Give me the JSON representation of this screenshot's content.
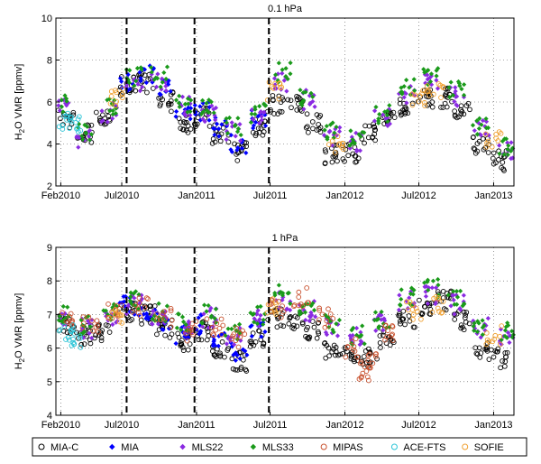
{
  "chart_data": [
    {
      "type": "scatter",
      "title": "0.1 hPa",
      "ylabel_main": "H",
      "ylabel_sub": "2",
      "ylabel_rest": "O VMR [ppmv]",
      "ylim": [
        2,
        10
      ],
      "yticks": [
        "2",
        "4",
        "6",
        "8",
        "10"
      ],
      "xlim": [
        "2010-01-20",
        "2013-02-20"
      ],
      "xticks": [
        {
          "date": "2010-02-01",
          "label": "Feb2010"
        },
        {
          "date": "2010-07-01",
          "label": "Jul2010"
        },
        {
          "date": "2011-01-01",
          "label": "Jan2011"
        },
        {
          "date": "2011-07-01",
          "label": "Jul2011"
        },
        {
          "date": "2012-01-01",
          "label": "Jan2012"
        },
        {
          "date": "2012-07-01",
          "label": "Jul2012"
        },
        {
          "date": "2013-01-01",
          "label": "Jan2013"
        }
      ],
      "grid": "dotted",
      "vlines": [
        "2010-07-13",
        "2010-12-27",
        "2011-06-28"
      ],
      "series": [
        {
          "name": "MIA-C",
          "values": [
            [
              "2010-02-15",
              5.2
            ],
            [
              "2010-04-01",
              4.5
            ],
            [
              "2010-05-15",
              5.2
            ],
            [
              "2010-07-15",
              6.8
            ],
            [
              "2010-09-01",
              6.9
            ],
            [
              "2010-10-15",
              6.0
            ],
            [
              "2010-12-01",
              5.0
            ],
            [
              "2011-01-15",
              5.3
            ],
            [
              "2011-03-01",
              4.5
            ],
            [
              "2011-04-15",
              3.6
            ],
            [
              "2011-06-01",
              4.8
            ],
            [
              "2011-07-15",
              5.9
            ],
            [
              "2011-09-01",
              6.0
            ],
            [
              "2011-10-15",
              5.0
            ],
            [
              "2011-12-01",
              3.5
            ],
            [
              "2012-01-15",
              3.6
            ],
            [
              "2012-03-01",
              4.5
            ],
            [
              "2012-04-15",
              5.2
            ],
            [
              "2012-06-01",
              5.8
            ],
            [
              "2012-07-15",
              6.2
            ],
            [
              "2012-09-01",
              6.2
            ],
            [
              "2012-10-15",
              5.5
            ],
            [
              "2012-12-01",
              4.0
            ],
            [
              "2013-01-15",
              3.2
            ]
          ]
        },
        {
          "name": "MIA",
          "values": [
            [
              "2010-07-15",
              7.0
            ],
            [
              "2010-09-01",
              7.4
            ],
            [
              "2010-10-15",
              6.6
            ],
            [
              "2010-12-01",
              5.5
            ],
            [
              "2011-01-15",
              5.6
            ],
            [
              "2011-03-01",
              4.8
            ],
            [
              "2011-04-15",
              4.0
            ],
            [
              "2011-06-01",
              5.2
            ]
          ]
        },
        {
          "name": "MLS22",
          "values": [
            [
              "2010-02-01",
              5.8
            ],
            [
              "2010-04-01",
              4.3
            ],
            [
              "2010-06-01",
              5.5
            ],
            [
              "2010-08-01",
              7.0
            ],
            [
              "2010-10-01",
              7.0
            ],
            [
              "2010-12-01",
              5.8
            ],
            [
              "2011-02-01",
              5.5
            ],
            [
              "2011-04-01",
              4.6
            ],
            [
              "2011-06-01",
              5.3
            ],
            [
              "2011-08-01",
              6.9
            ],
            [
              "2011-10-01",
              6.1
            ],
            [
              "2011-12-01",
              4.4
            ],
            [
              "2012-02-01",
              4.1
            ],
            [
              "2012-04-01",
              5.2
            ],
            [
              "2012-06-01",
              6.4
            ],
            [
              "2012-08-01",
              7.0
            ],
            [
              "2012-10-01",
              6.3
            ],
            [
              "2012-12-01",
              4.7
            ],
            [
              "2013-02-01",
              3.6
            ]
          ]
        },
        {
          "name": "MLS33",
          "values": [
            [
              "2010-02-01",
              6.0
            ],
            [
              "2010-04-01",
              4.5
            ],
            [
              "2010-06-01",
              5.8
            ],
            [
              "2010-08-01",
              7.2
            ],
            [
              "2010-10-01",
              7.2
            ],
            [
              "2010-12-01",
              6.0
            ],
            [
              "2011-02-01",
              5.7
            ],
            [
              "2011-04-01",
              4.8
            ],
            [
              "2011-06-01",
              5.5
            ],
            [
              "2011-08-01",
              7.4
            ],
            [
              "2011-10-01",
              6.3
            ],
            [
              "2011-12-01",
              4.6
            ],
            [
              "2012-02-01",
              4.3
            ],
            [
              "2012-04-01",
              5.4
            ],
            [
              "2012-06-01",
              6.7
            ],
            [
              "2012-08-01",
              7.3
            ],
            [
              "2012-10-01",
              6.5
            ],
            [
              "2012-12-01",
              4.9
            ],
            [
              "2013-02-01",
              3.8
            ]
          ]
        },
        {
          "name": "MIPAS",
          "values": []
        },
        {
          "name": "ACE-FTS",
          "values": [
            [
              "2010-02-10",
              5.0
            ],
            [
              "2010-03-10",
              4.9
            ]
          ]
        },
        {
          "name": "SOFIE",
          "values": [
            [
              "2010-06-20",
              6.2
            ],
            [
              "2011-07-10",
              6.5
            ],
            [
              "2011-12-10",
              4.0
            ],
            [
              "2012-07-01",
              6.3
            ],
            [
              "2012-08-10",
              6.4
            ],
            [
              "2013-01-01",
              4.2
            ]
          ]
        }
      ]
    },
    {
      "type": "scatter",
      "title": "1 hPa",
      "ylabel_main": "H",
      "ylabel_sub": "2",
      "ylabel_rest": "O VMR [ppmv]",
      "ylim": [
        4,
        9
      ],
      "yticks": [
        "4",
        "5",
        "6",
        "7",
        "8",
        "9"
      ],
      "xlim": [
        "2010-01-20",
        "2013-02-20"
      ],
      "xticks": [
        {
          "date": "2010-02-01",
          "label": "Feb2010"
        },
        {
          "date": "2010-07-01",
          "label": "Jul2010"
        },
        {
          "date": "2011-01-01",
          "label": "Jan2011"
        },
        {
          "date": "2011-07-01",
          "label": "Jul2011"
        },
        {
          "date": "2012-01-01",
          "label": "Jan2012"
        },
        {
          "date": "2012-07-01",
          "label": "Jul2012"
        },
        {
          "date": "2013-01-01",
          "label": "Jan2013"
        }
      ],
      "grid": "dotted",
      "vlines": [
        "2010-07-13",
        "2010-12-27",
        "2011-06-28"
      ],
      "series": [
        {
          "name": "MIA-C",
          "values": [
            [
              "2010-02-15",
              6.7
            ],
            [
              "2010-04-01",
              6.4
            ],
            [
              "2010-05-15",
              6.5
            ],
            [
              "2010-07-15",
              7.1
            ],
            [
              "2010-09-01",
              7.0
            ],
            [
              "2010-10-15",
              6.6
            ],
            [
              "2010-12-01",
              6.2
            ],
            [
              "2011-01-15",
              6.5
            ],
            [
              "2011-03-01",
              6.0
            ],
            [
              "2011-04-15",
              5.6
            ],
            [
              "2011-06-01",
              6.3
            ],
            [
              "2011-07-15",
              6.9
            ],
            [
              "2011-09-01",
              6.8
            ],
            [
              "2011-10-15",
              6.5
            ],
            [
              "2011-12-01",
              6.0
            ],
            [
              "2012-01-15",
              5.8
            ],
            [
              "2012-03-01",
              5.7
            ],
            [
              "2012-04-15",
              6.3
            ],
            [
              "2012-06-01",
              6.8
            ],
            [
              "2012-07-15",
              7.2
            ],
            [
              "2012-09-01",
              7.4
            ],
            [
              "2012-10-15",
              6.8
            ],
            [
              "2012-12-01",
              5.9
            ],
            [
              "2013-01-15",
              5.7
            ]
          ]
        },
        {
          "name": "MIA",
          "values": [
            [
              "2010-07-15",
              7.3
            ],
            [
              "2010-09-01",
              7.1
            ],
            [
              "2010-10-15",
              6.8
            ],
            [
              "2010-12-01",
              6.4
            ],
            [
              "2011-01-15",
              6.7
            ],
            [
              "2011-03-01",
              6.2
            ],
            [
              "2011-04-15",
              5.9
            ],
            [
              "2011-06-01",
              6.6
            ]
          ]
        },
        {
          "name": "MLS22",
          "values": [
            [
              "2010-02-01",
              6.9
            ],
            [
              "2010-04-01",
              6.6
            ],
            [
              "2010-06-01",
              7.0
            ],
            [
              "2010-08-01",
              7.3
            ],
            [
              "2010-10-01",
              7.0
            ],
            [
              "2010-12-01",
              6.7
            ],
            [
              "2011-02-01",
              6.9
            ],
            [
              "2011-04-01",
              6.4
            ],
            [
              "2011-06-01",
              6.9
            ],
            [
              "2011-08-01",
              7.4
            ],
            [
              "2011-10-01",
              7.1
            ],
            [
              "2011-12-01",
              6.6
            ],
            [
              "2012-02-01",
              6.3
            ],
            [
              "2012-04-01",
              6.8
            ],
            [
              "2012-06-01",
              7.4
            ],
            [
              "2012-08-01",
              7.6
            ],
            [
              "2012-10-01",
              7.3
            ],
            [
              "2012-12-01",
              6.6
            ],
            [
              "2013-02-01",
              6.4
            ]
          ]
        },
        {
          "name": "MLS33",
          "values": [
            [
              "2010-02-01",
              7.0
            ],
            [
              "2010-04-01",
              6.7
            ],
            [
              "2010-06-01",
              7.1
            ],
            [
              "2010-08-01",
              7.4
            ],
            [
              "2010-10-01",
              7.1
            ],
            [
              "2010-12-01",
              6.8
            ],
            [
              "2011-02-01",
              7.0
            ],
            [
              "2011-04-01",
              6.5
            ],
            [
              "2011-06-01",
              7.0
            ],
            [
              "2011-08-01",
              7.6
            ],
            [
              "2011-10-01",
              7.2
            ],
            [
              "2011-12-01",
              6.7
            ],
            [
              "2012-02-01",
              6.4
            ],
            [
              "2012-04-01",
              6.9
            ],
            [
              "2012-06-01",
              7.5
            ],
            [
              "2012-08-01",
              7.8
            ],
            [
              "2012-10-01",
              7.4
            ],
            [
              "2012-12-01",
              6.7
            ],
            [
              "2013-02-01",
              6.5
            ]
          ]
        },
        {
          "name": "MIPAS",
          "values": [
            [
              "2010-02-15",
              6.8
            ],
            [
              "2010-04-15",
              6.7
            ],
            [
              "2010-06-15",
              7.1
            ],
            [
              "2010-08-15",
              7.2
            ],
            [
              "2010-10-15",
              6.9
            ],
            [
              "2010-12-15",
              6.5
            ],
            [
              "2011-02-15",
              6.6
            ],
            [
              "2011-04-15",
              6.3
            ],
            [
              "2011-07-15",
              7.2
            ],
            [
              "2011-09-15",
              7.5
            ],
            [
              "2011-11-15",
              6.9
            ],
            [
              "2012-01-15",
              6.0
            ],
            [
              "2012-02-15",
              5.3
            ],
            [
              "2012-03-15",
              5.6
            ],
            [
              "2012-04-15",
              6.4
            ]
          ]
        },
        {
          "name": "ACE-FTS",
          "values": [
            [
              "2010-02-15",
              6.4
            ],
            [
              "2010-03-15",
              6.3
            ]
          ]
        },
        {
          "name": "SOFIE",
          "values": [
            [
              "2010-06-20",
              7.0
            ],
            [
              "2011-07-10",
              7.2
            ],
            [
              "2012-06-20",
              7.1
            ],
            [
              "2012-08-10",
              7.3
            ],
            [
              "2013-01-01",
              6.4
            ]
          ]
        }
      ]
    }
  ],
  "legend": {
    "placement": "bottom",
    "entries": [
      {
        "name": "MIA-C",
        "color": "#000000",
        "marker": "circle-open"
      },
      {
        "name": "MIA",
        "color": "#0000ff",
        "marker": "diamond-filled"
      },
      {
        "name": "MLS22",
        "color": "#8a2be2",
        "marker": "diamond-filled"
      },
      {
        "name": "MLS33",
        "color": "#1a9a1a",
        "marker": "diamond-filled"
      },
      {
        "name": "MIPAS",
        "color": "#c8502d",
        "marker": "circle-open"
      },
      {
        "name": "ACE-FTS",
        "color": "#29c4d6",
        "marker": "circle-open"
      },
      {
        "name": "SOFIE",
        "color": "#f0a030",
        "marker": "circle-open"
      }
    ]
  }
}
